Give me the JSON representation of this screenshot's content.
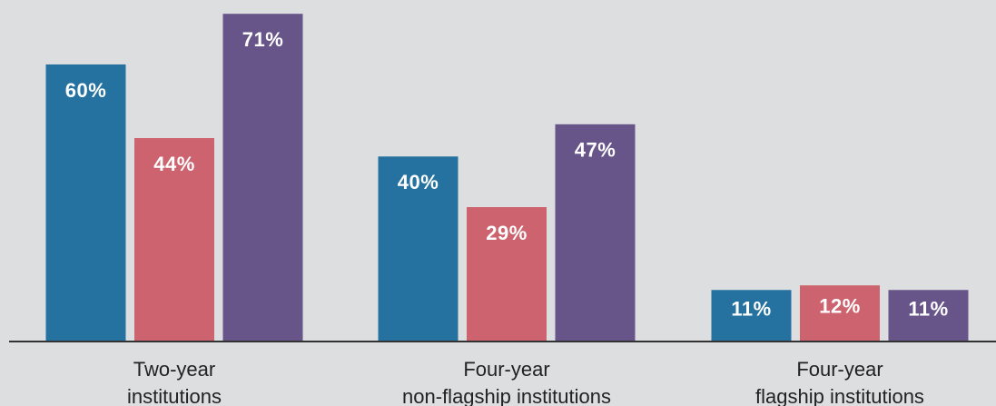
{
  "chart_data": {
    "type": "bar",
    "categories": [
      [
        "Two-year",
        "institutions"
      ],
      [
        "Four-year",
        "non-flagship institutions"
      ],
      [
        "Four-year",
        "flagship institutions"
      ]
    ],
    "series": [
      {
        "color": "#2572a0",
        "values": [
          60,
          40,
          11
        ],
        "value_labels": [
          "60%",
          "40%",
          "11%"
        ]
      },
      {
        "color": "#cc636e",
        "values": [
          44,
          29,
          12
        ],
        "value_labels": [
          "44%",
          "29%",
          "12%"
        ]
      },
      {
        "color": "#67558a",
        "values": [
          71,
          47,
          11
        ],
        "value_labels": [
          "71%",
          "47%",
          "11%"
        ]
      }
    ],
    "ylim": [
      0,
      74
    ]
  }
}
